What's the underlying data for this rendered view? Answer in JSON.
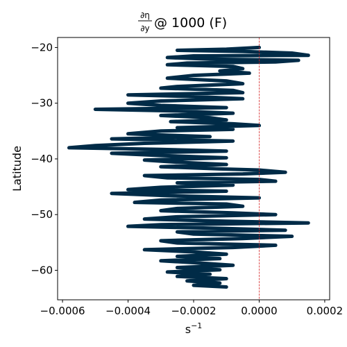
{
  "chart_data": {
    "type": "line",
    "title": {
      "numerator": "∂η",
      "denominator": "∂y",
      "rest": " @ 1000 (F)"
    },
    "xlabel": "s",
    "xlabel_exponent": "−1",
    "ylabel": "Latitude",
    "xlim": [
      -0.000615,
      0.000215
    ],
    "ylim": [
      -65.3,
      -18.2
    ],
    "x_ticks": [
      -0.0006,
      -0.0004,
      -0.0002,
      0.0,
      0.0002
    ],
    "x_tick_labels": [
      "−0.0006",
      "−0.0004",
      "−0.0002",
      "0.0000",
      "0.0002"
    ],
    "y_ticks": [
      -20,
      -30,
      -40,
      -50,
      -60
    ],
    "y_tick_labels": [
      "−20",
      "−30",
      "−40",
      "−50",
      "−60"
    ],
    "reference_line": {
      "x": 0,
      "color": "#d62728",
      "style": "dashed"
    },
    "series": [
      {
        "color": "#002b47",
        "line_width": 5,
        "points": [
          [
            0.0,
            -20.0
          ],
          [
            -0.0001,
            -20.3
          ],
          [
            -0.00025,
            -20.5
          ],
          [
            -5e-05,
            -20.7
          ],
          [
            0.0001,
            -21.0
          ],
          [
            0.00015,
            -21.4
          ],
          [
            -0.0002,
            -21.5
          ],
          [
            -0.00028,
            -21.8
          ],
          [
            -0.00015,
            -22.1
          ],
          [
            0.00012,
            -22.3
          ],
          [
            5e-05,
            -22.6
          ],
          [
            -0.00022,
            -22.8
          ],
          [
            -0.00028,
            -23.1
          ],
          [
            -8e-05,
            -23.4
          ],
          [
            -5e-05,
            -23.8
          ],
          [
            -0.00012,
            -24.2
          ],
          [
            -3e-05,
            -24.6
          ],
          [
            -0.0002,
            -25.0
          ],
          [
            -0.00028,
            -25.5
          ],
          [
            -0.0001,
            -26.0
          ],
          [
            -5e-05,
            -26.5
          ],
          [
            -0.00025,
            -27.0
          ],
          [
            -0.0003,
            -27.3
          ],
          [
            -8e-05,
            -27.7
          ],
          [
            -5e-05,
            -28.1
          ],
          [
            -0.0004,
            -28.5
          ],
          [
            -0.0002,
            -28.8
          ],
          [
            -5e-05,
            -29.2
          ],
          [
            -0.0003,
            -29.6
          ],
          [
            -0.0004,
            -30.0
          ],
          [
            -0.0003,
            -30.4
          ],
          [
            -0.0001,
            -30.8
          ],
          [
            -0.0005,
            -31.1
          ],
          [
            -0.00025,
            -31.4
          ],
          [
            -8e-05,
            -31.8
          ],
          [
            -0.0003,
            -32.2
          ],
          [
            -0.00015,
            -32.6
          ],
          [
            -0.0001,
            -33.0
          ],
          [
            -0.00027,
            -33.3
          ],
          [
            -8e-05,
            -33.7
          ],
          [
            0.0,
            -34.0
          ],
          [
            -0.00025,
            -34.4
          ],
          [
            -8e-05,
            -34.7
          ],
          [
            -0.0003,
            -35.0
          ],
          [
            -0.0004,
            -35.5
          ],
          [
            -0.00015,
            -36.0
          ],
          [
            -0.00045,
            -36.4
          ],
          [
            -8e-05,
            -36.8
          ],
          [
            -0.00035,
            -37.2
          ],
          [
            -0.0005,
            -37.6
          ],
          [
            -0.00058,
            -38.0
          ],
          [
            -0.0003,
            -38.3
          ],
          [
            -0.0001,
            -38.6
          ],
          [
            -0.00045,
            -39.0
          ],
          [
            -0.0003,
            -39.4
          ],
          [
            -0.0001,
            -39.8
          ],
          [
            -0.00035,
            -40.2
          ],
          [
            -0.00025,
            -40.6
          ],
          [
            -0.0001,
            -41.0
          ],
          [
            -0.0003,
            -41.4
          ],
          [
            -0.00012,
            -41.8
          ],
          [
            0.0,
            -42.0
          ],
          [
            8e-05,
            -42.4
          ],
          [
            -5e-05,
            -42.7
          ],
          [
            -0.00035,
            -43.0
          ],
          [
            -0.00028,
            -43.4
          ],
          [
            0.0,
            -43.7
          ],
          [
            5e-05,
            -44.0
          ],
          [
            -0.00025,
            -44.3
          ],
          [
            -8e-05,
            -44.7
          ],
          [
            -0.0003,
            -45.1
          ],
          [
            -0.0004,
            -45.5
          ],
          [
            -0.0001,
            -45.8
          ],
          [
            -0.00045,
            -46.2
          ],
          [
            -0.00028,
            -46.6
          ],
          [
            0.0,
            -47.0
          ],
          [
            -0.0003,
            -47.4
          ],
          [
            -0.00038,
            -47.8
          ],
          [
            -0.0001,
            -48.1
          ],
          [
            -5e-05,
            -48.5
          ],
          [
            -0.00025,
            -48.9
          ],
          [
            -0.0003,
            -49.3
          ],
          [
            -8e-05,
            -49.7
          ],
          [
            5e-05,
            -50.0
          ],
          [
            -0.00025,
            -50.4
          ],
          [
            -0.00035,
            -50.8
          ],
          [
            -0.0001,
            -51.2
          ],
          [
            0.00015,
            -51.5
          ],
          [
            -0.0003,
            -51.8
          ],
          [
            -0.0004,
            -52.1
          ],
          [
            -0.0001,
            -52.5
          ],
          [
            8e-05,
            -52.8
          ],
          [
            -0.00025,
            -53.1
          ],
          [
            -0.0002,
            -53.5
          ],
          [
            0.0001,
            -53.9
          ],
          [
            -5e-05,
            -54.3
          ],
          [
            -0.0003,
            -54.7
          ],
          [
            -0.00025,
            -55.1
          ],
          [
            5e-05,
            -55.5
          ],
          [
            -8e-05,
            -55.9
          ],
          [
            -0.00035,
            -56.3
          ],
          [
            -0.0002,
            -56.7
          ],
          [
            -0.0001,
            -57.1
          ],
          [
            -0.00025,
            -57.5
          ],
          [
            -0.00012,
            -57.9
          ],
          [
            -0.0003,
            -58.3
          ],
          [
            -0.00018,
            -58.7
          ],
          [
            -8e-05,
            -59.1
          ],
          [
            -0.00025,
            -59.5
          ],
          [
            -0.00012,
            -59.9
          ],
          [
            -0.00028,
            -60.3
          ],
          [
            -0.00015,
            -60.7
          ],
          [
            -0.00025,
            -61.1
          ],
          [
            -0.0001,
            -61.5
          ],
          [
            -0.00022,
            -61.9
          ],
          [
            -0.00012,
            -62.3
          ],
          [
            -0.0002,
            -62.7
          ],
          [
            -0.0001,
            -63.0
          ]
        ]
      }
    ]
  }
}
